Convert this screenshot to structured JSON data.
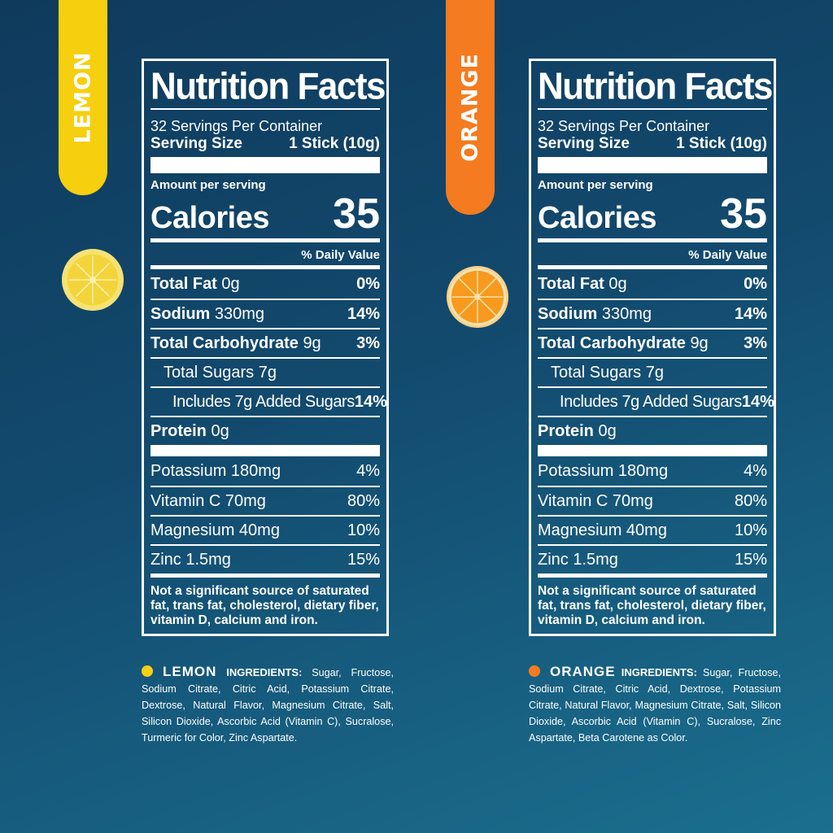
{
  "colors": {
    "background": "#124a6e",
    "lemon": "#f6cf0f",
    "orange": "#f47b1f",
    "text": "#ffffff"
  },
  "lemon": {
    "tab_label": "LEMON",
    "fruit_icon": "lemon-slice",
    "facts": {
      "title": "Nutrition Facts",
      "servings_per_container": "32 Servings Per Container",
      "serving_size_label": "Serving Size",
      "serving_size_value": "1 Stick (10g)",
      "amount_per_serving": "Amount per serving",
      "calories_label": "Calories",
      "calories_value": "35",
      "daily_value_header": "% Daily Value",
      "total_fat_label": "Total Fat",
      "total_fat_amount": "0g",
      "total_fat_pct": "0%",
      "sodium_label": "Sodium",
      "sodium_amount": "330mg",
      "sodium_pct": "14%",
      "carb_label": "Total Carbohydrate",
      "carb_amount": "9g",
      "carb_pct": "3%",
      "sugars": "Total Sugars 7g",
      "added_sugars": "Includes 7g Added Sugars",
      "added_sugars_pct": "14%",
      "protein_label": "Protein",
      "protein_amount": "0g",
      "potassium": "Potassium 180mg",
      "potassium_pct": "4%",
      "vitamin_c": "Vitamin C 70mg",
      "vitamin_c_pct": "80%",
      "magnesium": "Magnesium 40mg",
      "magnesium_pct": "10%",
      "zinc": "Zinc 1.5mg",
      "zinc_pct": "15%",
      "footnote": "Not a significant source of saturated fat, trans fat, cholesterol, dietary fiber, vitamin D, calcium and iron."
    },
    "ingredients_flavor": "LEMON",
    "ingredients_label": "INGREDIENTS:",
    "ingredients_text": "Sugar, Fructose, Sodium Citrate, Citric Acid, Potassium Citrate, Dextrose, Natural Flavor, Magnesium Citrate, Salt, Silicon Dioxide, Ascorbic Acid (Vitamin C), Sucralose, Turmeric for Color, Zinc Aspartate."
  },
  "orange": {
    "tab_label": "ORANGE",
    "fruit_icon": "orange-slice",
    "facts": {
      "title": "Nutrition Facts",
      "servings_per_container": "32 Servings Per Container",
      "serving_size_label": "Serving Size",
      "serving_size_value": "1 Stick (10g)",
      "amount_per_serving": "Amount per serving",
      "calories_label": "Calories",
      "calories_value": "35",
      "daily_value_header": "% Daily Value",
      "total_fat_label": "Total Fat",
      "total_fat_amount": "0g",
      "total_fat_pct": "0%",
      "sodium_label": "Sodium",
      "sodium_amount": "330mg",
      "sodium_pct": "14%",
      "carb_label": "Total Carbohydrate",
      "carb_amount": "9g",
      "carb_pct": "3%",
      "sugars": "Total Sugars 7g",
      "added_sugars": "Includes 7g Added Sugars",
      "added_sugars_pct": "14%",
      "protein_label": "Protein",
      "protein_amount": "0g",
      "potassium": "Potassium 180mg",
      "potassium_pct": "4%",
      "vitamin_c": "Vitamin C 70mg",
      "vitamin_c_pct": "80%",
      "magnesium": "Magnesium 40mg",
      "magnesium_pct": "10%",
      "zinc": "Zinc 1.5mg",
      "zinc_pct": "15%",
      "footnote": "Not a significant source of saturated fat, trans fat, cholesterol, dietary fiber, vitamin D, calcium and iron."
    },
    "ingredients_flavor": "ORANGE",
    "ingredients_label": "INGREDIENTS:",
    "ingredients_text": "Sugar, Fructose, Sodium Citrate, Citric Acid, Dextrose, Potassium Citrate, Natural Flavor, Magnesium Citrate, Salt, Silicon Dioxide, Ascorbic Acid (Vitamin C), Sucralose, Zinc Aspartate, Beta Carotene as Color."
  }
}
